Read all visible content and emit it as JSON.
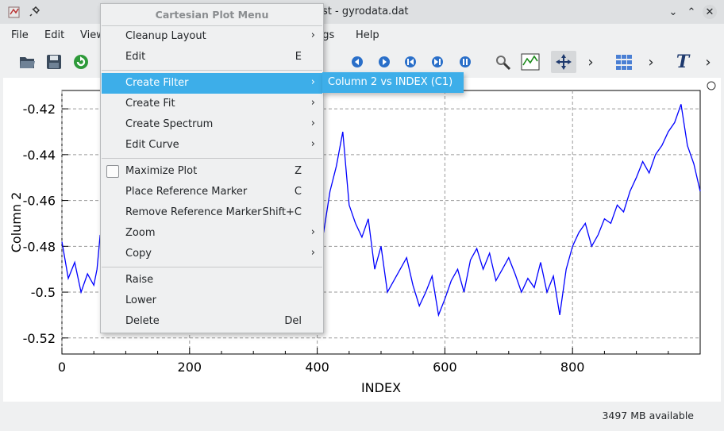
{
  "window": {
    "title": "Kst - gyrodata.dat"
  },
  "menubar": {
    "items": [
      "File",
      "Edit",
      "View",
      "Settings",
      "Help"
    ]
  },
  "context_menu": {
    "header": "Cartesian Plot Menu",
    "items": [
      {
        "label": "Cleanup Layout",
        "shortcut": "",
        "submenu": true
      },
      {
        "label": "Edit",
        "shortcut": "E",
        "submenu": false
      },
      {
        "label": "Create Filter",
        "shortcut": "",
        "submenu": true,
        "active": true
      },
      {
        "label": "Create Fit",
        "shortcut": "",
        "submenu": true
      },
      {
        "label": "Create Spectrum",
        "shortcut": "",
        "submenu": true
      },
      {
        "label": "Edit Curve",
        "shortcut": "",
        "submenu": true
      },
      {
        "label": "Maximize Plot",
        "shortcut": "Z",
        "checkbox": true,
        "checked": false
      },
      {
        "label": "Place Reference Marker",
        "shortcut": "C"
      },
      {
        "label": "Remove Reference Marker",
        "shortcut": "Shift+C"
      },
      {
        "label": "Zoom",
        "shortcut": "",
        "submenu": true
      },
      {
        "label": "Copy",
        "shortcut": "",
        "submenu": true
      },
      {
        "label": "Raise",
        "shortcut": ""
      },
      {
        "label": "Lower",
        "shortcut": ""
      },
      {
        "label": "Delete",
        "shortcut": "Del"
      }
    ],
    "arrow": "›"
  },
  "submenu": {
    "items": [
      "Column 2 vs INDEX (C1)"
    ]
  },
  "status": {
    "memory": "3497 MB available"
  },
  "chart_data": {
    "type": "line",
    "xlabel": "INDEX",
    "ylabel": "Column 2",
    "xlim": [
      0,
      1000
    ],
    "ylim": [
      -0.527,
      -0.412
    ],
    "xticks": [
      0,
      200,
      400,
      600,
      800
    ],
    "yticks": [
      -0.52,
      -0.5,
      -0.48,
      -0.46,
      -0.44,
      -0.42
    ],
    "ytick_labels": [
      "-0.52",
      "-0.5",
      "-0.48",
      "-0.46",
      "-0.44",
      "-0.42"
    ],
    "grid": true,
    "series": [
      {
        "color": "#0000ff",
        "x": [
          0,
          10,
          20,
          30,
          40,
          50,
          55,
          60,
          65,
          70,
          80,
          90,
          100,
          110,
          120,
          130,
          140,
          150,
          160,
          170,
          180,
          190,
          200,
          210,
          220,
          230,
          240,
          250,
          260,
          270,
          280,
          290,
          300,
          310,
          320,
          330,
          340,
          350,
          360,
          370,
          380,
          390,
          400,
          410,
          420,
          430,
          440,
          450,
          460,
          470,
          480,
          490,
          500,
          510,
          520,
          530,
          540,
          550,
          560,
          570,
          580,
          590,
          600,
          610,
          620,
          630,
          640,
          650,
          660,
          670,
          680,
          690,
          700,
          710,
          720,
          730,
          740,
          750,
          760,
          770,
          780,
          790,
          800,
          810,
          820,
          830,
          840,
          850,
          860,
          870,
          880,
          890,
          900,
          910,
          920,
          930,
          940,
          950,
          960,
          970,
          980,
          990,
          1000
        ],
        "y": [
          -0.478,
          -0.494,
          -0.487,
          -0.5,
          -0.492,
          -0.497,
          -0.49,
          -0.475,
          -0.49,
          -0.496,
          -0.485,
          -0.478,
          -0.47,
          -0.474,
          -0.466,
          -0.47,
          -0.462,
          -0.466,
          -0.458,
          -0.463,
          -0.468,
          -0.46,
          -0.465,
          -0.47,
          -0.462,
          -0.467,
          -0.46,
          -0.455,
          -0.462,
          -0.468,
          -0.473,
          -0.466,
          -0.47,
          -0.465,
          -0.46,
          -0.458,
          -0.464,
          -0.47,
          -0.466,
          -0.472,
          -0.468,
          -0.463,
          -0.46,
          -0.474,
          -0.456,
          -0.445,
          -0.43,
          -0.462,
          -0.47,
          -0.476,
          -0.468,
          -0.49,
          -0.48,
          -0.5,
          -0.495,
          -0.49,
          -0.485,
          -0.497,
          -0.506,
          -0.5,
          -0.493,
          -0.51,
          -0.503,
          -0.495,
          -0.49,
          -0.5,
          -0.486,
          -0.481,
          -0.49,
          -0.483,
          -0.495,
          -0.49,
          -0.485,
          -0.492,
          -0.5,
          -0.494,
          -0.498,
          -0.487,
          -0.5,
          -0.493,
          -0.51,
          -0.49,
          -0.48,
          -0.474,
          -0.47,
          -0.48,
          -0.475,
          -0.468,
          -0.47,
          -0.462,
          -0.465,
          -0.456,
          -0.45,
          -0.443,
          -0.448,
          -0.44,
          -0.436,
          -0.43,
          -0.426,
          -0.418,
          -0.436,
          -0.444,
          -0.456
        ]
      }
    ]
  }
}
